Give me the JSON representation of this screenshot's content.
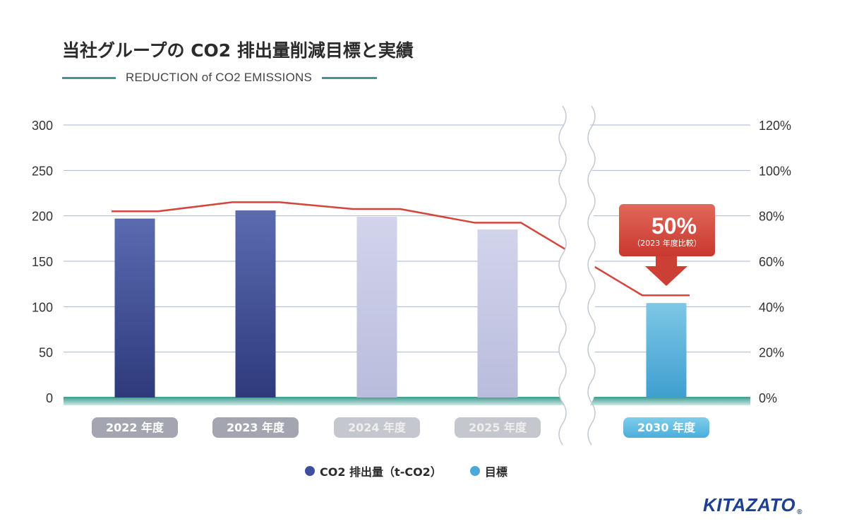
{
  "title": "当社グループの CO2 排出量削減目標と実績",
  "subtitle": "REDUCTION of CO2 EMISSIONS",
  "colors": {
    "actual_dark": "#4e5fa5",
    "actual_light": "#c9cbe6",
    "target": "#6dbfe2",
    "line": "#d4453b",
    "grid": "#a9b6d3",
    "baseline": "#3a9a8e",
    "callout": "#d9584c",
    "pill_dark": "#a3a6b0",
    "pill_light": "#c5c7ce",
    "pill_target": "#6ec3e6",
    "legend_dot_actual": "#3e4fa0",
    "legend_dot_target": "#4aa9d9"
  },
  "chart_data": {
    "type": "bar",
    "categories": [
      "2022 年度",
      "2023 年度",
      "2024 年度",
      "2025 年度",
      "2030 年度"
    ],
    "series": [
      {
        "name": "CO2 排出量（t-CO2）",
        "values": [
          197,
          206,
          199,
          185,
          null
        ]
      },
      {
        "name": "目標",
        "values": [
          null,
          null,
          null,
          null,
          104
        ]
      },
      {
        "values": [
          82,
          86,
          83,
          77,
          45
        ],
        "axis": "right",
        "type": "line"
      }
    ],
    "bar_style": [
      "actual",
      "actual",
      "forecast",
      "forecast",
      "target"
    ],
    "left_axis": {
      "ylim": [
        0,
        300
      ],
      "ticks": [
        "0",
        "50",
        "100",
        "150",
        "200",
        "250",
        "300"
      ]
    },
    "right_axis": {
      "ylim": [
        0,
        120
      ],
      "ticks": [
        "0%",
        "20%",
        "40%",
        "60%",
        "80%",
        "100%",
        "120%"
      ]
    },
    "axis_break": "between 2025 年度 and 2030 年度",
    "grid": true,
    "legend_position": "bottom-center",
    "annotation": {
      "value": "50%",
      "note": "（2023 年度比較）",
      "target_category": "2030 年度"
    }
  },
  "legend": {
    "items": [
      {
        "label": "CO2 排出量（t-CO2）"
      },
      {
        "label": "目標"
      }
    ]
  },
  "logo": {
    "text": "KITAZATO",
    "reg": "®"
  }
}
